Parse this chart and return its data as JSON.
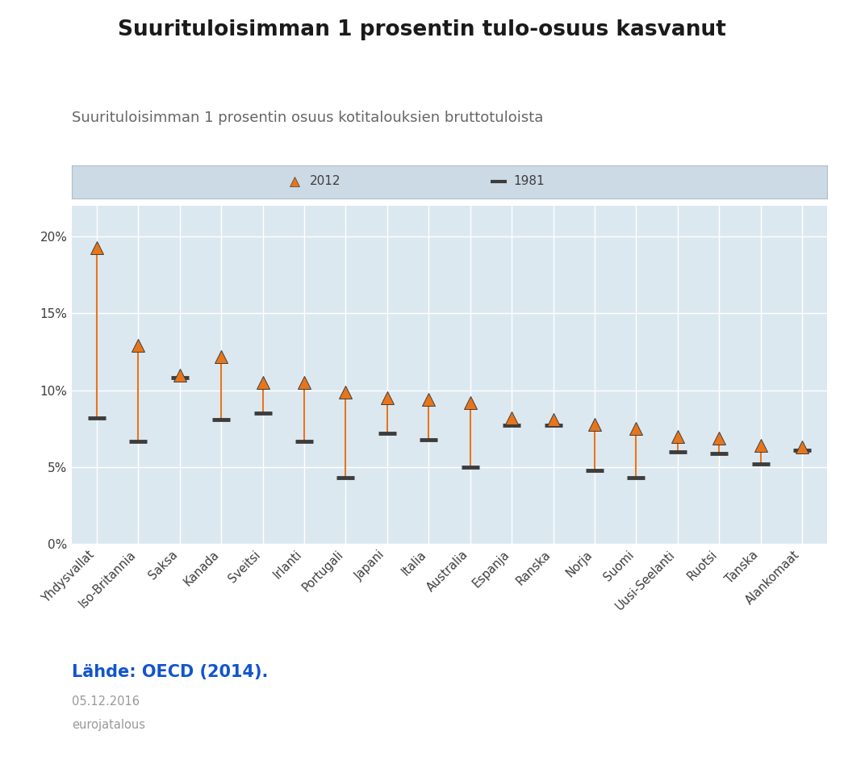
{
  "title": "Suurituloisimman 1 prosentin tulo-osuus kasvanut",
  "subtitle": "Suurituloisimman 1 prosentin osuus kotitalouksien bruttotuloista",
  "source": "Lähde: OECD (2014).",
  "date": "05.12.2016",
  "publisher": "eurojatalous",
  "categories": [
    "Yhdysvallat",
    "Iso-Britannia",
    "Saksa",
    "Kanada",
    "Sveitsi",
    "Irlanti",
    "Portugali",
    "Japani",
    "Italia",
    "Australia",
    "Espanja",
    "Ranska",
    "Norja",
    "Suomi",
    "Uusi-Seelanti",
    "Ruotsi",
    "Tanska",
    "Alankomaat"
  ],
  "values_2012": [
    19.3,
    12.9,
    11.0,
    12.2,
    10.5,
    10.5,
    9.9,
    9.5,
    9.4,
    9.2,
    8.2,
    8.1,
    7.8,
    7.5,
    7.0,
    6.9,
    6.4,
    6.3
  ],
  "values_1981": [
    8.2,
    6.7,
    10.8,
    8.1,
    8.5,
    6.7,
    4.3,
    7.2,
    6.8,
    5.0,
    7.7,
    7.7,
    4.8,
    4.3,
    6.0,
    5.9,
    5.2,
    6.1
  ],
  "orange_color": "#E8751A",
  "dark_color": "#3d3d3d",
  "bg_color": "#ffffff",
  "plot_bg": "#dce8f0",
  "legend_bg": "#ccdae6",
  "ylim": [
    0,
    22
  ],
  "yticks": [
    0,
    5,
    10,
    15,
    20
  ],
  "ytick_labels": [
    "0%",
    "5%",
    "10%",
    "15%",
    "20%"
  ],
  "title_color": "#1a1a1a",
  "subtitle_color": "#666666",
  "source_color": "#1155cc",
  "footer_color": "#999999"
}
